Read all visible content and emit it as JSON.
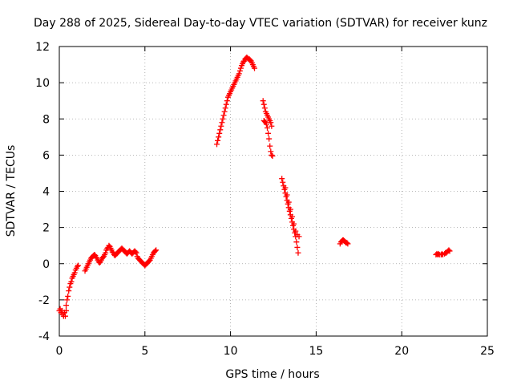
{
  "chart_data": {
    "type": "scatter",
    "title": "Day 288 of 2025, Sidereal Day-to-day VTEC variation (SDTVAR) for receiver kunz",
    "xlabel": "GPS time / hours",
    "ylabel": "SDTVAR / TECUs",
    "xlim": [
      0,
      25
    ],
    "ylim": [
      -4,
      12
    ],
    "xticks": [
      0,
      5,
      10,
      15,
      20,
      25
    ],
    "yticks": [
      -4,
      -2,
      0,
      2,
      4,
      6,
      8,
      10,
      12
    ],
    "grid": true,
    "marker": "+",
    "color": "#ff0000",
    "series": [
      {
        "name": "SDTVAR",
        "points": [
          [
            0.0,
            -2.6
          ],
          [
            0.05,
            -2.5
          ],
          [
            0.1,
            -2.7
          ],
          [
            0.15,
            -2.6
          ],
          [
            0.2,
            -2.8
          ],
          [
            0.25,
            -2.9
          ],
          [
            0.3,
            -2.7
          ],
          [
            0.35,
            -2.9
          ],
          [
            0.4,
            -2.6
          ],
          [
            0.4,
            -2.3
          ],
          [
            0.45,
            -2.0
          ],
          [
            0.5,
            -1.8
          ],
          [
            0.55,
            -1.5
          ],
          [
            0.6,
            -1.3
          ],
          [
            0.65,
            -1.1
          ],
          [
            0.7,
            -1.0
          ],
          [
            0.75,
            -0.8
          ],
          [
            0.8,
            -0.7
          ],
          [
            0.85,
            -0.6
          ],
          [
            0.9,
            -0.5
          ],
          [
            0.95,
            -0.35
          ],
          [
            1.0,
            -0.25
          ],
          [
            1.05,
            -0.15
          ],
          [
            1.1,
            -0.1
          ],
          [
            1.5,
            -0.4
          ],
          [
            1.55,
            -0.3
          ],
          [
            1.6,
            -0.2
          ],
          [
            1.65,
            -0.1
          ],
          [
            1.7,
            0.0
          ],
          [
            1.75,
            0.1
          ],
          [
            1.8,
            0.2
          ],
          [
            1.85,
            0.3
          ],
          [
            1.9,
            0.35
          ],
          [
            1.95,
            0.4
          ],
          [
            2.0,
            0.45
          ],
          [
            2.05,
            0.5
          ],
          [
            2.1,
            0.45
          ],
          [
            2.15,
            0.35
          ],
          [
            2.2,
            0.3
          ],
          [
            2.25,
            0.2
          ],
          [
            2.3,
            0.1
          ],
          [
            2.35,
            0.05
          ],
          [
            2.4,
            0.1
          ],
          [
            2.45,
            0.2
          ],
          [
            2.5,
            0.3
          ],
          [
            2.55,
            0.35
          ],
          [
            2.6,
            0.4
          ],
          [
            2.65,
            0.5
          ],
          [
            2.7,
            0.6
          ],
          [
            2.75,
            0.75
          ],
          [
            2.8,
            0.85
          ],
          [
            2.85,
            0.9
          ],
          [
            2.9,
            1.0
          ],
          [
            2.95,
            0.95
          ],
          [
            3.0,
            0.85
          ],
          [
            3.05,
            0.75
          ],
          [
            3.1,
            0.65
          ],
          [
            3.15,
            0.6
          ],
          [
            3.2,
            0.5
          ],
          [
            3.25,
            0.45
          ],
          [
            3.3,
            0.5
          ],
          [
            3.35,
            0.55
          ],
          [
            3.4,
            0.6
          ],
          [
            3.45,
            0.65
          ],
          [
            3.5,
            0.7
          ],
          [
            3.55,
            0.75
          ],
          [
            3.6,
            0.8
          ],
          [
            3.65,
            0.85
          ],
          [
            3.7,
            0.8
          ],
          [
            3.75,
            0.75
          ],
          [
            3.8,
            0.7
          ],
          [
            3.85,
            0.65
          ],
          [
            3.9,
            0.6
          ],
          [
            3.95,
            0.55
          ],
          [
            4.0,
            0.6
          ],
          [
            4.05,
            0.65
          ],
          [
            4.1,
            0.7
          ],
          [
            4.15,
            0.65
          ],
          [
            4.2,
            0.6
          ],
          [
            4.25,
            0.55
          ],
          [
            4.3,
            0.6
          ],
          [
            4.35,
            0.65
          ],
          [
            4.4,
            0.7
          ],
          [
            4.45,
            0.65
          ],
          [
            4.5,
            0.6
          ],
          [
            4.55,
            0.4
          ],
          [
            4.6,
            0.3
          ],
          [
            4.65,
            0.25
          ],
          [
            4.7,
            0.2
          ],
          [
            4.75,
            0.15
          ],
          [
            4.8,
            0.1
          ],
          [
            4.85,
            0.05
          ],
          [
            4.9,
            0.0
          ],
          [
            4.95,
            -0.05
          ],
          [
            5.0,
            -0.1
          ],
          [
            5.05,
            -0.05
          ],
          [
            5.1,
            0.0
          ],
          [
            5.15,
            0.05
          ],
          [
            5.2,
            0.1
          ],
          [
            5.25,
            0.15
          ],
          [
            5.3,
            0.2
          ],
          [
            5.35,
            0.3
          ],
          [
            5.4,
            0.4
          ],
          [
            5.45,
            0.5
          ],
          [
            5.5,
            0.6
          ],
          [
            5.55,
            0.65
          ],
          [
            5.6,
            0.7
          ],
          [
            5.65,
            0.75
          ],
          [
            9.2,
            6.6
          ],
          [
            9.25,
            6.8
          ],
          [
            9.3,
            7.0
          ],
          [
            9.35,
            7.2
          ],
          [
            9.4,
            7.4
          ],
          [
            9.45,
            7.6
          ],
          [
            9.5,
            7.8
          ],
          [
            9.55,
            8.0
          ],
          [
            9.6,
            8.2
          ],
          [
            9.65,
            8.4
          ],
          [
            9.7,
            8.6
          ],
          [
            9.75,
            8.8
          ],
          [
            9.8,
            9.0
          ],
          [
            9.85,
            9.2
          ],
          [
            9.9,
            9.3
          ],
          [
            9.95,
            9.4
          ],
          [
            10.0,
            9.5
          ],
          [
            10.05,
            9.6
          ],
          [
            10.1,
            9.7
          ],
          [
            10.15,
            9.8
          ],
          [
            10.2,
            9.9
          ],
          [
            10.25,
            10.0
          ],
          [
            10.3,
            10.1
          ],
          [
            10.35,
            10.2
          ],
          [
            10.4,
            10.3
          ],
          [
            10.45,
            10.4
          ],
          [
            10.5,
            10.5
          ],
          [
            10.55,
            10.65
          ],
          [
            10.6,
            10.8
          ],
          [
            10.65,
            10.95
          ],
          [
            10.7,
            11.05
          ],
          [
            10.75,
            11.15
          ],
          [
            10.8,
            11.2
          ],
          [
            10.85,
            11.3
          ],
          [
            10.9,
            11.35
          ],
          [
            10.95,
            11.4
          ],
          [
            11.0,
            11.35
          ],
          [
            11.05,
            11.3
          ],
          [
            11.1,
            11.3
          ],
          [
            11.15,
            11.25
          ],
          [
            11.2,
            11.2
          ],
          [
            11.25,
            11.1
          ],
          [
            11.3,
            11.0
          ],
          [
            11.35,
            10.9
          ],
          [
            11.4,
            10.8
          ],
          [
            11.9,
            9.0
          ],
          [
            11.95,
            8.8
          ],
          [
            12.0,
            8.6
          ],
          [
            12.05,
            8.4
          ],
          [
            12.1,
            8.3
          ],
          [
            12.15,
            8.2
          ],
          [
            12.2,
            8.1
          ],
          [
            12.25,
            8.0
          ],
          [
            12.3,
            7.9
          ],
          [
            12.35,
            7.8
          ],
          [
            12.4,
            7.6
          ],
          [
            11.95,
            7.9
          ],
          [
            12.0,
            7.85
          ],
          [
            12.05,
            7.8
          ],
          [
            12.1,
            7.7
          ],
          [
            12.15,
            7.5
          ],
          [
            12.2,
            7.2
          ],
          [
            12.25,
            6.9
          ],
          [
            12.3,
            6.5
          ],
          [
            12.35,
            6.2
          ],
          [
            12.4,
            6.0
          ],
          [
            12.45,
            5.95
          ],
          [
            13.0,
            4.7
          ],
          [
            13.05,
            4.5
          ],
          [
            13.1,
            4.3
          ],
          [
            13.15,
            4.1
          ],
          [
            13.2,
            3.9
          ],
          [
            13.25,
            3.7
          ],
          [
            13.3,
            3.5
          ],
          [
            13.35,
            3.3
          ],
          [
            13.4,
            3.1
          ],
          [
            13.45,
            2.9
          ],
          [
            13.5,
            2.7
          ],
          [
            13.55,
            2.5
          ],
          [
            13.6,
            2.3
          ],
          [
            13.65,
            2.1
          ],
          [
            13.7,
            1.9
          ],
          [
            13.75,
            1.7
          ],
          [
            13.8,
            1.5
          ],
          [
            13.85,
            1.2
          ],
          [
            13.9,
            0.9
          ],
          [
            13.95,
            0.6
          ],
          [
            13.2,
            4.2
          ],
          [
            13.3,
            3.8
          ],
          [
            13.4,
            3.4
          ],
          [
            13.5,
            3.0
          ],
          [
            13.6,
            2.6
          ],
          [
            13.7,
            2.2
          ],
          [
            13.8,
            1.8
          ],
          [
            13.9,
            1.6
          ],
          [
            14.0,
            1.5
          ],
          [
            16.4,
            1.1
          ],
          [
            16.45,
            1.2
          ],
          [
            16.5,
            1.25
          ],
          [
            16.55,
            1.3
          ],
          [
            16.6,
            1.3
          ],
          [
            16.65,
            1.25
          ],
          [
            16.7,
            1.2
          ],
          [
            16.75,
            1.15
          ],
          [
            16.8,
            1.15
          ],
          [
            16.85,
            1.1
          ],
          [
            22.0,
            0.5
          ],
          [
            22.05,
            0.55
          ],
          [
            22.1,
            0.5
          ],
          [
            22.15,
            0.55
          ],
          [
            22.2,
            0.5
          ],
          [
            22.3,
            0.5
          ],
          [
            22.35,
            0.55
          ],
          [
            22.4,
            0.5
          ],
          [
            22.5,
            0.55
          ],
          [
            22.55,
            0.6
          ],
          [
            22.6,
            0.6
          ],
          [
            22.65,
            0.65
          ],
          [
            22.7,
            0.7
          ],
          [
            22.75,
            0.75
          ],
          [
            22.8,
            0.7
          ]
        ]
      }
    ]
  }
}
